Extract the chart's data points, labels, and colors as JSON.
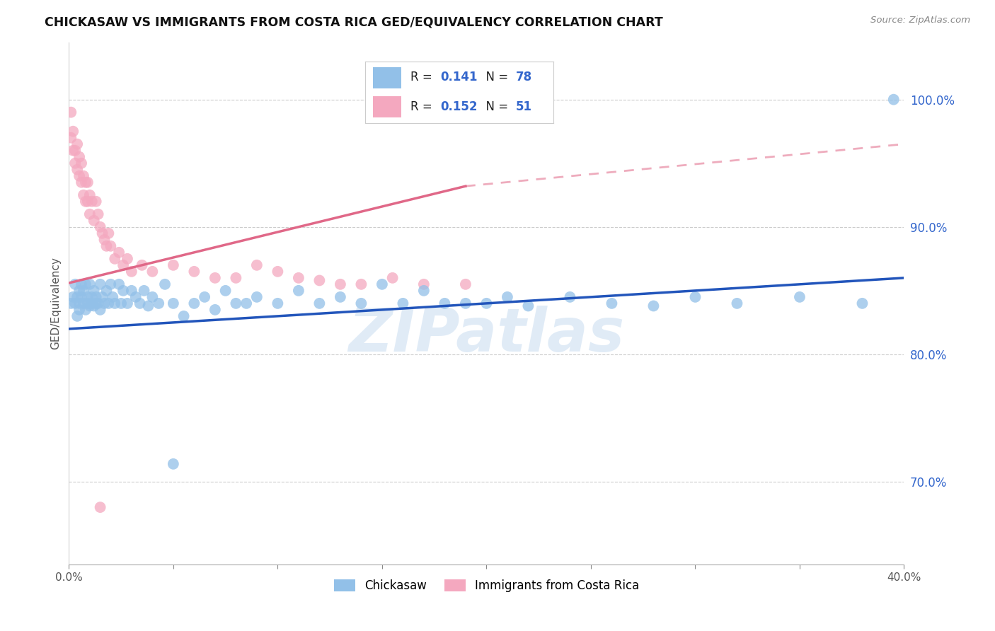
{
  "title": "CHICKASAW VS IMMIGRANTS FROM COSTA RICA GED/EQUIVALENCY CORRELATION CHART",
  "source": "Source: ZipAtlas.com",
  "ylabel": "GED/Equivalency",
  "ylabel_right_labels": [
    "100.0%",
    "90.0%",
    "80.0%",
    "70.0%"
  ],
  "ylabel_right_values": [
    1.0,
    0.9,
    0.8,
    0.7
  ],
  "xmin": 0.0,
  "xmax": 0.4,
  "ymin": 0.635,
  "ymax": 1.045,
  "blue_label": "Chickasaw",
  "pink_label": "Immigrants from Costa Rica",
  "blue_R": "0.141",
  "blue_N": "78",
  "pink_R": "0.152",
  "pink_N": "51",
  "blue_color": "#92c0e8",
  "pink_color": "#f4a8bf",
  "blue_line_color": "#2255bb",
  "pink_line_color": "#e06888",
  "watermark": "ZIPatlas",
  "blue_scatter_x": [
    0.001,
    0.002,
    0.003,
    0.003,
    0.004,
    0.004,
    0.005,
    0.005,
    0.005,
    0.006,
    0.006,
    0.007,
    0.007,
    0.008,
    0.008,
    0.009,
    0.009,
    0.01,
    0.01,
    0.011,
    0.011,
    0.012,
    0.012,
    0.013,
    0.013,
    0.014,
    0.015,
    0.015,
    0.016,
    0.017,
    0.018,
    0.019,
    0.02,
    0.021,
    0.022,
    0.024,
    0.025,
    0.026,
    0.028,
    0.03,
    0.032,
    0.034,
    0.036,
    0.038,
    0.04,
    0.043,
    0.046,
    0.05,
    0.055,
    0.06,
    0.065,
    0.07,
    0.075,
    0.08,
    0.085,
    0.09,
    0.1,
    0.11,
    0.12,
    0.13,
    0.14,
    0.15,
    0.16,
    0.17,
    0.18,
    0.19,
    0.2,
    0.21,
    0.22,
    0.24,
    0.26,
    0.28,
    0.3,
    0.32,
    0.35,
    0.38,
    0.05,
    0.395
  ],
  "blue_scatter_y": [
    0.84,
    0.845,
    0.84,
    0.855,
    0.83,
    0.845,
    0.835,
    0.85,
    0.84,
    0.855,
    0.845,
    0.84,
    0.85,
    0.835,
    0.855,
    0.84,
    0.845,
    0.838,
    0.855,
    0.84,
    0.845,
    0.838,
    0.85,
    0.84,
    0.845,
    0.84,
    0.855,
    0.835,
    0.845,
    0.84,
    0.85,
    0.84,
    0.855,
    0.845,
    0.84,
    0.855,
    0.84,
    0.85,
    0.84,
    0.85,
    0.845,
    0.84,
    0.85,
    0.838,
    0.845,
    0.84,
    0.855,
    0.84,
    0.83,
    0.84,
    0.845,
    0.835,
    0.85,
    0.84,
    0.84,
    0.845,
    0.84,
    0.85,
    0.84,
    0.845,
    0.84,
    0.855,
    0.84,
    0.85,
    0.84,
    0.84,
    0.84,
    0.845,
    0.838,
    0.845,
    0.84,
    0.838,
    0.845,
    0.84,
    0.845,
    0.84,
    0.714,
    1.0
  ],
  "pink_scatter_x": [
    0.001,
    0.001,
    0.002,
    0.002,
    0.003,
    0.003,
    0.004,
    0.004,
    0.005,
    0.005,
    0.006,
    0.006,
    0.007,
    0.007,
    0.008,
    0.008,
    0.009,
    0.009,
    0.01,
    0.01,
    0.011,
    0.012,
    0.013,
    0.014,
    0.015,
    0.016,
    0.017,
    0.018,
    0.019,
    0.02,
    0.022,
    0.024,
    0.026,
    0.028,
    0.03,
    0.035,
    0.04,
    0.05,
    0.06,
    0.07,
    0.08,
    0.09,
    0.1,
    0.11,
    0.12,
    0.13,
    0.14,
    0.155,
    0.17,
    0.19,
    0.015
  ],
  "pink_scatter_y": [
    0.97,
    0.99,
    0.96,
    0.975,
    0.95,
    0.96,
    0.945,
    0.965,
    0.94,
    0.955,
    0.935,
    0.95,
    0.925,
    0.94,
    0.92,
    0.935,
    0.92,
    0.935,
    0.91,
    0.925,
    0.92,
    0.905,
    0.92,
    0.91,
    0.9,
    0.895,
    0.89,
    0.885,
    0.895,
    0.885,
    0.875,
    0.88,
    0.87,
    0.875,
    0.865,
    0.87,
    0.865,
    0.87,
    0.865,
    0.86,
    0.86,
    0.87,
    0.865,
    0.86,
    0.858,
    0.855,
    0.855,
    0.86,
    0.855,
    0.855,
    0.68
  ],
  "blue_trend_x0": 0.0,
  "blue_trend_y0": 0.82,
  "blue_trend_x1": 0.4,
  "blue_trend_y1": 0.86,
  "pink_trend_x0": 0.0,
  "pink_trend_y0": 0.856,
  "pink_trend_x1_solid": 0.19,
  "pink_trend_y1_solid": 0.932,
  "pink_trend_x1_dash": 0.4,
  "pink_trend_y1_dash": 0.965
}
